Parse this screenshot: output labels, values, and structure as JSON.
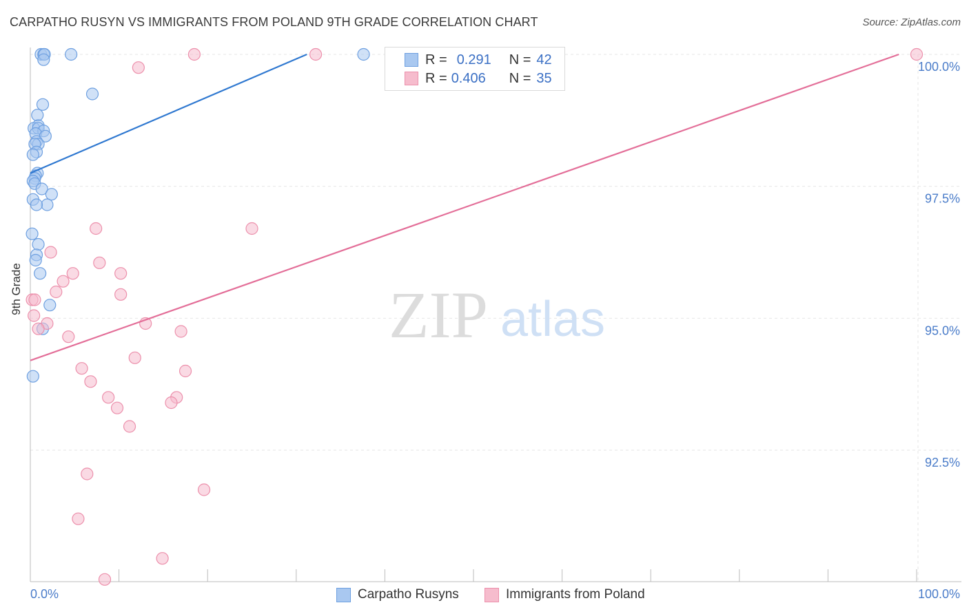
{
  "title": "CARPATHO RUSYN VS IMMIGRANTS FROM POLAND 9TH GRADE CORRELATION CHART",
  "source": "Source: ZipAtlas.com",
  "watermark": {
    "zip": "ZIP",
    "atlas": "atlas"
  },
  "legend": {
    "row1": {
      "r_label": "R =",
      "r_value": "0.291",
      "n_label": "N =",
      "n_value": "42"
    },
    "row2": {
      "r_label": "R =",
      "r_value": "0.406",
      "n_label": "N =",
      "n_value": "35"
    }
  },
  "colors": {
    "blue_fill": "#a9c8f0",
    "blue_stroke": "#6d9fe0",
    "blue_line": "#2f78d0",
    "pink_fill": "#f6bccd",
    "pink_stroke": "#ec8fab",
    "pink_line": "#e36e98",
    "tick_text": "#4a7cc9",
    "grid": "#e6e6e6"
  },
  "chart_data": {
    "type": "scatter",
    "title": "CARPATHO RUSYN VS IMMIGRANTS FROM POLAND 9TH GRADE CORRELATION CHART",
    "xlabel": "",
    "ylabel": "9th Grade",
    "xlim": [
      0,
      100
    ],
    "ylim": [
      90.0,
      100.25
    ],
    "x_tick_labels": [
      "0.0%",
      "100.0%"
    ],
    "y_ticks": [
      {
        "value": 100.0,
        "label": "100.0%"
      },
      {
        "value": 97.5,
        "label": "97.5%"
      },
      {
        "value": 95.0,
        "label": "95.0%"
      },
      {
        "value": 92.5,
        "label": "92.5%"
      }
    ],
    "series": [
      {
        "name": "Carpatho Rusyns",
        "color": "blue",
        "r": 0.291,
        "n": 42,
        "trend": {
          "x0": 0.0,
          "y0": 97.75,
          "x1": 31.2,
          "y1": 100.0
        },
        "points": [
          [
            1.2,
            100.0
          ],
          [
            1.5,
            100.0
          ],
          [
            1.6,
            100.0
          ],
          [
            1.5,
            99.9
          ],
          [
            4.6,
            100.0
          ],
          [
            37.6,
            100.0
          ],
          [
            7.0,
            99.25
          ],
          [
            1.4,
            99.05
          ],
          [
            0.8,
            98.85
          ],
          [
            0.9,
            98.65
          ],
          [
            0.4,
            98.6
          ],
          [
            0.9,
            98.6
          ],
          [
            1.5,
            98.55
          ],
          [
            0.6,
            98.5
          ],
          [
            1.7,
            98.45
          ],
          [
            0.7,
            98.35
          ],
          [
            0.9,
            98.3
          ],
          [
            0.5,
            98.3
          ],
          [
            0.7,
            98.15
          ],
          [
            0.3,
            98.1
          ],
          [
            0.8,
            97.75
          ],
          [
            0.6,
            97.7
          ],
          [
            0.5,
            97.65
          ],
          [
            0.3,
            97.6
          ],
          [
            0.5,
            97.55
          ],
          [
            1.3,
            97.45
          ],
          [
            2.4,
            97.35
          ],
          [
            0.3,
            97.25
          ],
          [
            1.9,
            97.15
          ],
          [
            0.7,
            97.15
          ],
          [
            0.2,
            96.6
          ],
          [
            0.9,
            96.4
          ],
          [
            0.7,
            96.2
          ],
          [
            0.6,
            96.1
          ],
          [
            1.1,
            95.85
          ],
          [
            2.2,
            95.25
          ],
          [
            1.4,
            94.8
          ],
          [
            0.3,
            93.9
          ]
        ]
      },
      {
        "name": "Immigrants from Poland",
        "color": "pink",
        "r": 0.406,
        "n": 35,
        "trend": {
          "x0": 0.0,
          "y0": 94.2,
          "x1": 98.0,
          "y1": 100.0
        },
        "points": [
          [
            18.5,
            100.0
          ],
          [
            32.2,
            100.0
          ],
          [
            100.0,
            100.0
          ],
          [
            12.2,
            99.75
          ],
          [
            7.4,
            96.7
          ],
          [
            25.0,
            96.7
          ],
          [
            2.3,
            96.25
          ],
          [
            7.8,
            96.05
          ],
          [
            10.2,
            95.85
          ],
          [
            4.8,
            95.85
          ],
          [
            3.7,
            95.7
          ],
          [
            0.2,
            95.35
          ],
          [
            0.5,
            95.35
          ],
          [
            2.9,
            95.5
          ],
          [
            10.2,
            95.45
          ],
          [
            0.4,
            95.05
          ],
          [
            1.9,
            94.9
          ],
          [
            0.9,
            94.8
          ],
          [
            13.0,
            94.9
          ],
          [
            17.0,
            94.75
          ],
          [
            4.3,
            94.65
          ],
          [
            11.8,
            94.25
          ],
          [
            5.8,
            94.05
          ],
          [
            17.5,
            94.0
          ],
          [
            6.8,
            93.8
          ],
          [
            8.8,
            93.5
          ],
          [
            16.5,
            93.5
          ],
          [
            15.9,
            93.4
          ],
          [
            9.8,
            93.3
          ],
          [
            11.2,
            92.95
          ],
          [
            6.4,
            92.05
          ],
          [
            19.6,
            91.75
          ],
          [
            5.4,
            91.2
          ],
          [
            14.9,
            90.45
          ],
          [
            8.4,
            90.05
          ]
        ]
      }
    ]
  },
  "bottom_legend": {
    "item1": "Carpatho Rusyns",
    "item2": "Immigrants from Poland"
  }
}
